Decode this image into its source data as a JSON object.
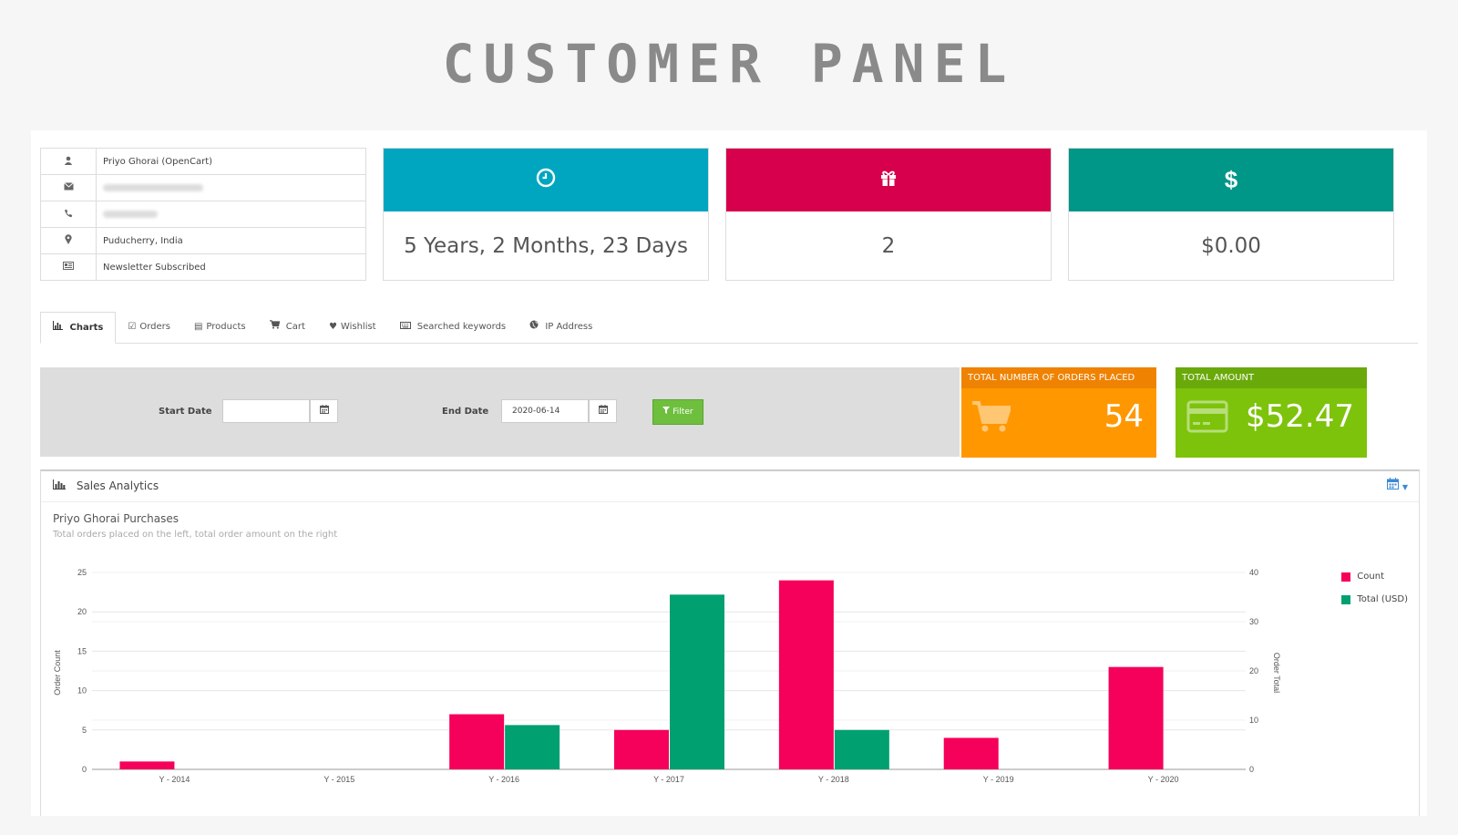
{
  "page": {
    "title": "CUSTOMER PANEL"
  },
  "customer": {
    "name": "Priyo Ghorai (OpenCart)",
    "location": "Puducherry, India",
    "newsletter": "Newsletter Subscribed",
    "icons": [
      "user-icon",
      "envelope-icon",
      "phone-icon",
      "map-marker-icon",
      "newspaper-icon"
    ]
  },
  "cards": [
    {
      "icon": "clock-icon",
      "value": "5 Years, 2 Months, 23 Days",
      "color": "#00a6c0"
    },
    {
      "icon": "gift-icon",
      "value": "2",
      "color": "#d6004d"
    },
    {
      "icon": "dollar-icon",
      "value": "$0.00",
      "color": "#009688"
    }
  ],
  "tabs": [
    {
      "label": "Charts",
      "icon": "bar-chart-icon",
      "active": true
    },
    {
      "label": "Orders",
      "icon": "check-square-icon"
    },
    {
      "label": "Products",
      "icon": "list-icon"
    },
    {
      "label": "Cart",
      "icon": "cart-icon"
    },
    {
      "label": "Wishlist",
      "icon": "heart-icon"
    },
    {
      "label": "Searched keywords",
      "icon": "keyboard-icon"
    },
    {
      "label": "IP Address",
      "icon": "globe-icon"
    }
  ],
  "filter": {
    "start_label": "Start Date",
    "start_value": "",
    "end_label": "End Date",
    "end_value": "2020-06-14",
    "button_label": "Filter"
  },
  "totals": {
    "orders": {
      "label": "TOTAL NUMBER OF ORDERS PLACED",
      "value": "54",
      "color": "#ff9800",
      "header_color": "#ef8200"
    },
    "amount": {
      "label": "TOTAL AMOUNT",
      "value": "$52.47",
      "color": "#7dc30b",
      "header_color": "#6aa90a"
    }
  },
  "analytics": {
    "heading": "Sales Analytics",
    "chart_title": "Priyo Ghorai Purchases",
    "chart_subtitle": "Total orders placed on the left, total order amount on the right"
  },
  "chart_data": {
    "type": "bar",
    "categories": [
      "Y - 2014",
      "Y - 2015",
      "Y - 2016",
      "Y - 2017",
      "Y - 2018",
      "Y - 2019",
      "Y - 2020"
    ],
    "series": [
      {
        "name": "Count",
        "axis": "left",
        "color": "#f5005a",
        "values": [
          1,
          0,
          7,
          5,
          24,
          4,
          13
        ]
      },
      {
        "name": "Total (USD)",
        "axis": "right",
        "color": "#00a070",
        "values": [
          0,
          0,
          9,
          35.5,
          8,
          0,
          0
        ]
      }
    ],
    "ylabel": "Order Count",
    "ylabel_right": "Order Total",
    "ylim": [
      0,
      25
    ],
    "yticks": [
      0,
      5,
      10,
      15,
      20,
      25
    ],
    "ylim_right": [
      0,
      40
    ],
    "yticks_right": [
      0,
      10,
      20,
      30,
      40
    ],
    "grid": true,
    "legend": "right"
  }
}
